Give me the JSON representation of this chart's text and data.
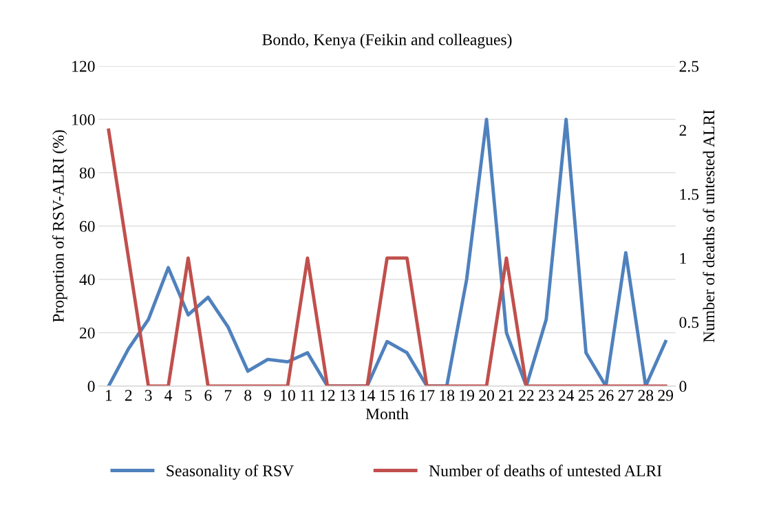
{
  "chart_data": {
    "type": "line",
    "title": "Bondo, Kenya (Feikin and colleagues)",
    "xlabel": "Month",
    "ylabel": "Proportion of RSV-ALRI (%)",
    "y2label": "Number of deaths of untested ALRI",
    "categories": [
      "1",
      "2",
      "3",
      "4",
      "5",
      "6",
      "7",
      "8",
      "9",
      "10",
      "11",
      "12",
      "13",
      "14",
      "15",
      "16",
      "17",
      "18",
      "19",
      "20",
      "21",
      "22",
      "23",
      "24",
      "25",
      "26",
      "27",
      "28",
      "29"
    ],
    "series": [
      {
        "name": "Seasonality of RSV",
        "color": "#4f81bd",
        "values": [
          0,
          14,
          25,
          44.4,
          26.7,
          33.3,
          22.2,
          5.6,
          10,
          9.1,
          12.5,
          0,
          0,
          0,
          16.7,
          12.5,
          0,
          0,
          40,
          100,
          20,
          0,
          25,
          100,
          12.5,
          0,
          50,
          0,
          16.7
        ]
      },
      {
        "name": "Number of deaths of untested ALRI",
        "color": "#c0504d",
        "axis": "y2",
        "values": [
          2,
          1,
          0,
          0,
          1,
          0,
          0,
          0,
          0,
          0,
          1,
          0,
          0,
          0,
          1,
          1,
          0,
          0,
          0,
          0,
          1,
          0,
          0,
          0,
          0,
          0,
          0,
          0,
          0
        ]
      }
    ],
    "ylim": [
      0,
      120
    ],
    "yticks": [
      0,
      20,
      40,
      60,
      80,
      100,
      120
    ],
    "y2lim": [
      0,
      2.5
    ],
    "y2ticks": [
      {
        "value": 0,
        "label": "0"
      },
      0.5,
      {
        "value": 1,
        "label": "1"
      },
      1.5,
      {
        "value": 2,
        "label": "2"
      },
      2.5
    ],
    "grid": "y",
    "legend": "bottom",
    "marker": "none",
    "line_style": "solid"
  }
}
